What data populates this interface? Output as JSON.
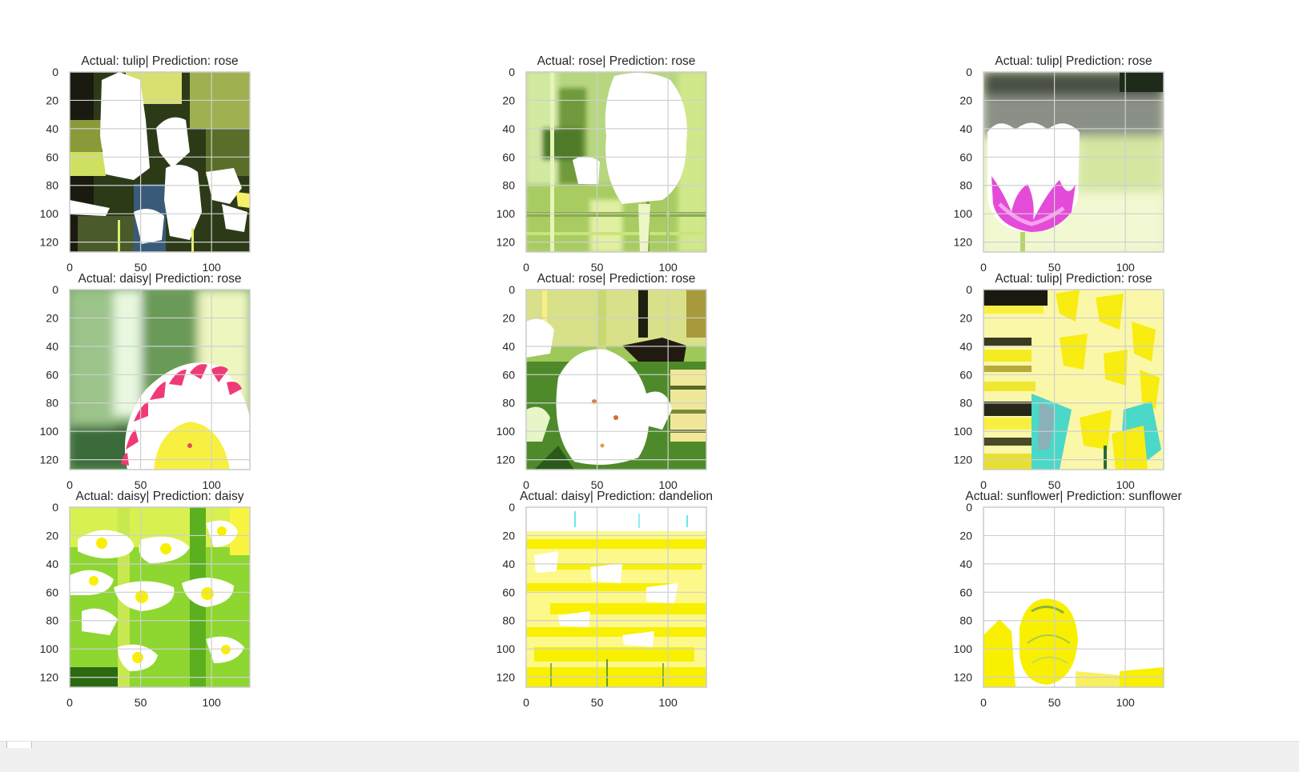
{
  "chart_data": [
    {
      "type": "image",
      "title": "Actual: tulip| Prediction: rose",
      "xticks": [
        "0",
        "50",
        "100"
      ],
      "yticks": [
        "0",
        "20",
        "40",
        "60",
        "80",
        "100",
        "120"
      ],
      "xlim": [
        0,
        127
      ],
      "ylim": [
        127,
        0
      ],
      "grid": true
    },
    {
      "type": "image",
      "title": "Actual: rose| Prediction: rose",
      "xticks": [
        "0",
        "50",
        "100"
      ],
      "yticks": [
        "0",
        "20",
        "40",
        "60",
        "80",
        "100",
        "120"
      ],
      "xlim": [
        0,
        127
      ],
      "ylim": [
        127,
        0
      ],
      "grid": true
    },
    {
      "type": "image",
      "title": "Actual: tulip| Prediction: rose",
      "xticks": [
        "0",
        "50",
        "100"
      ],
      "yticks": [
        "0",
        "20",
        "40",
        "60",
        "80",
        "100",
        "120"
      ],
      "xlim": [
        0,
        127
      ],
      "ylim": [
        127,
        0
      ],
      "grid": true
    },
    {
      "type": "image",
      "title": "Actual: daisy| Prediction: rose",
      "xticks": [
        "0",
        "50",
        "100"
      ],
      "yticks": [
        "0",
        "20",
        "40",
        "60",
        "80",
        "100",
        "120"
      ],
      "xlim": [
        0,
        127
      ],
      "ylim": [
        127,
        0
      ],
      "grid": true
    },
    {
      "type": "image",
      "title": "Actual: rose| Prediction: rose",
      "xticks": [
        "0",
        "50",
        "100"
      ],
      "yticks": [
        "0",
        "20",
        "40",
        "60",
        "80",
        "100",
        "120"
      ],
      "xlim": [
        0,
        127
      ],
      "ylim": [
        127,
        0
      ],
      "grid": true
    },
    {
      "type": "image",
      "title": "Actual: tulip| Prediction: rose",
      "xticks": [
        "0",
        "50",
        "100"
      ],
      "yticks": [
        "0",
        "20",
        "40",
        "60",
        "80",
        "100",
        "120"
      ],
      "xlim": [
        0,
        127
      ],
      "ylim": [
        127,
        0
      ],
      "grid": true
    },
    {
      "type": "image",
      "title": "Actual: daisy| Prediction: daisy",
      "xticks": [
        "0",
        "50",
        "100"
      ],
      "yticks": [
        "0",
        "20",
        "40",
        "60",
        "80",
        "100",
        "120"
      ],
      "xlim": [
        0,
        127
      ],
      "ylim": [
        127,
        0
      ],
      "grid": true
    },
    {
      "type": "image",
      "title": "Actual: daisy| Prediction: dandelion",
      "xticks": [
        "0",
        "50",
        "100"
      ],
      "yticks": [
        "0",
        "20",
        "40",
        "60",
        "80",
        "100",
        "120"
      ],
      "xlim": [
        0,
        127
      ],
      "ylim": [
        127,
        0
      ],
      "grid": true
    },
    {
      "type": "image",
      "title": "Actual: sunflower| Prediction: sunflower",
      "xticks": [
        "0",
        "50",
        "100"
      ],
      "yticks": [
        "0",
        "20",
        "40",
        "60",
        "80",
        "100",
        "120"
      ],
      "xlim": [
        0,
        127
      ],
      "ylim": [
        127,
        0
      ],
      "grid": true
    }
  ],
  "colors": {
    "grid": "#cfcfcf",
    "frame": "#cccccc",
    "text": "#262626"
  }
}
